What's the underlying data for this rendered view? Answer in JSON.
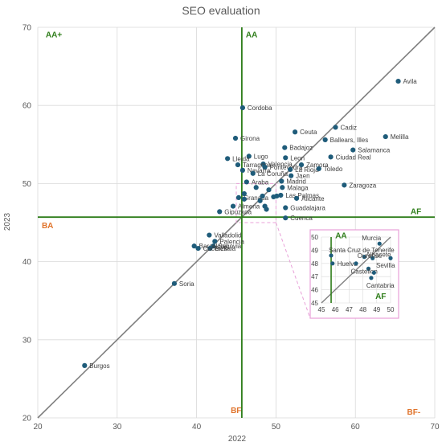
{
  "chart_data": {
    "type": "scatter",
    "title": "SEO evaluation",
    "xlabel": "2022",
    "ylabel": "2023",
    "xlim": [
      20,
      70
    ],
    "ylim": [
      20,
      70
    ],
    "x_ticks": [
      20,
      30,
      40,
      50,
      60,
      70
    ],
    "y_ticks": [
      20,
      30,
      40,
      50,
      60,
      70
    ],
    "grid": true,
    "diagonal": true,
    "threshold_x": 45.7,
    "threshold_y": 45.7,
    "colors": {
      "point": "#1f5c7a",
      "threshold": "#2e7d1a",
      "diagonal": "#7f7f7f",
      "orange": "#e0742c",
      "zoom_box": "#e8a0d8"
    },
    "quadrant_labels": [
      {
        "text": "AA+",
        "x": 21,
        "y": 68.7,
        "color": "green"
      },
      {
        "text": "AA",
        "x": 46.2,
        "y": 68.7,
        "color": "green"
      },
      {
        "text": "BA",
        "x": 20.5,
        "y": 44.3,
        "color": "orange"
      },
      {
        "text": "AF",
        "x": 68.3,
        "y": 46.1,
        "color": "green"
      },
      {
        "text": "BF",
        "x": 44.3,
        "y": 20.6,
        "color": "orange"
      },
      {
        "text": "BF-",
        "x": 68.2,
        "y": 20.4,
        "color": "orange"
      }
    ],
    "points": [
      {
        "label": "Avila",
        "x": 65.4,
        "y": 63.1
      },
      {
        "label": "Cordoba",
        "x": 45.8,
        "y": 59.7
      },
      {
        "label": "Cadiz",
        "x": 57.5,
        "y": 57.2
      },
      {
        "label": "Ceuta",
        "x": 52.4,
        "y": 56.6
      },
      {
        "label": "Girona",
        "x": 44.9,
        "y": 55.8
      },
      {
        "label": "Melilla",
        "x": 63.8,
        "y": 56.0
      },
      {
        "label": "Ballears, Illes",
        "x": 56.2,
        "y": 55.6
      },
      {
        "label": "Salamanca",
        "x": 59.7,
        "y": 54.3
      },
      {
        "label": "Badajoz",
        "x": 51.1,
        "y": 54.6
      },
      {
        "label": "Lugo",
        "x": 46.6,
        "y": 53.5
      },
      {
        "label": "Lleida",
        "x": 43.9,
        "y": 53.2
      },
      {
        "label": "Leon",
        "x": 51.2,
        "y": 53.3
      },
      {
        "label": "Ciudad Real",
        "x": 56.9,
        "y": 53.4
      },
      {
        "label": "Valencia",
        "x": 48.4,
        "y": 52.5
      },
      {
        "label": "Tarragona",
        "x": 45.2,
        "y": 52.4
      },
      {
        "label": "Pontevedra",
        "x": 48.6,
        "y": 52.1
      },
      {
        "label": "Zamora",
        "x": 53.2,
        "y": 52.4
      },
      {
        "label": "Navarra",
        "x": 45.8,
        "y": 51.7
      },
      {
        "label": "La Rioja",
        "x": 51.8,
        "y": 51.8
      },
      {
        "label": "Toledo",
        "x": 55.4,
        "y": 51.9
      },
      {
        "label": "La Coruña",
        "x": 47.1,
        "y": 51.3
      },
      {
        "label": "Jaen",
        "x": 51.9,
        "y": 51.0
      },
      {
        "label": "Araba",
        "x": 46.3,
        "y": 50.2
      },
      {
        "label": "Madrid",
        "x": 50.7,
        "y": 50.3
      },
      {
        "label": "Zaragoza",
        "x": 58.6,
        "y": 49.8
      },
      {
        "label": "Malaga",
        "x": 50.8,
        "y": 49.5
      },
      {
        "label": "Las Palmas",
        "x": 50.6,
        "y": 48.5
      },
      {
        "label": "Alicante",
        "x": 52.6,
        "y": 48.1
      },
      {
        "label": "Granada",
        "x": 45.3,
        "y": 48.2
      },
      {
        "label": "Almeria",
        "x": 44.6,
        "y": 47.1
      },
      {
        "label": "Guadalajara",
        "x": 51.2,
        "y": 46.9
      },
      {
        "label": "Gipuzkoa",
        "x": 42.9,
        "y": 46.4
      },
      {
        "label": "Cuenca",
        "x": 51.2,
        "y": 45.6
      },
      {
        "label": "Valladolid",
        "x": 41.6,
        "y": 43.4
      },
      {
        "label": "Palencia",
        "x": 42.3,
        "y": 42.6
      },
      {
        "label": "Segovia",
        "x": 42.1,
        "y": 42.0
      },
      {
        "label": "Barcelona",
        "x": 39.7,
        "y": 42.0
      },
      {
        "label": "Bizkaia",
        "x": 41.7,
        "y": 41.7
      },
      {
        "label": "Caceres",
        "x": 40.2,
        "y": 41.7
      },
      {
        "label": "Soria",
        "x": 37.2,
        "y": 37.2
      },
      {
        "label": "Burgos",
        "x": 25.9,
        "y": 26.7
      },
      {
        "label": "",
        "x": 46.0,
        "y": 48.7
      },
      {
        "label": "",
        "x": 46.0,
        "y": 48.0
      },
      {
        "label": "",
        "x": 47.5,
        "y": 49.5
      },
      {
        "label": "",
        "x": 48.0,
        "y": 47.8
      },
      {
        "label": "",
        "x": 48.3,
        "y": 48.4
      },
      {
        "label": "",
        "x": 48.6,
        "y": 47.1
      },
      {
        "label": "",
        "x": 49.1,
        "y": 49.2
      },
      {
        "label": "",
        "x": 49.7,
        "y": 48.3
      },
      {
        "label": "",
        "x": 50.1,
        "y": 48.4
      },
      {
        "label": "",
        "x": 48.8,
        "y": 46.7
      }
    ],
    "inset": {
      "xlim": [
        45,
        50
      ],
      "ylim": [
        45,
        50
      ],
      "ticks": [
        45,
        46,
        47,
        48,
        49,
        50
      ],
      "threshold": 45.7,
      "labels": [
        {
          "text": "AA",
          "x": 46.0,
          "y": 49.9,
          "color": "green"
        },
        {
          "text": "AF",
          "x": 48.9,
          "y": 45.3,
          "color": "green"
        }
      ],
      "points": [
        {
          "label": "Murcia",
          "x": 49.2,
          "y": 49.5
        },
        {
          "label": "Santa Cruz de Tenerife",
          "x": 45.7,
          "y": 48.6
        },
        {
          "label": "Albacete",
          "x": 48.1,
          "y": 48.5
        },
        {
          "label": "Ourense",
          "x": 48.7,
          "y": 48.4
        },
        {
          "label": "Huelva",
          "x": 45.8,
          "y": 48.0
        },
        {
          "label": "Sevilla",
          "x": 50.0,
          "y": 48.4
        },
        {
          "label": "Castellon",
          "x": 48.4,
          "y": 47.6
        },
        {
          "label": "Cantabria",
          "x": 48.6,
          "y": 46.9
        },
        {
          "label": "",
          "x": 47.5,
          "y": 48.0
        },
        {
          "label": "",
          "x": 48.8,
          "y": 47.3
        }
      ]
    }
  }
}
